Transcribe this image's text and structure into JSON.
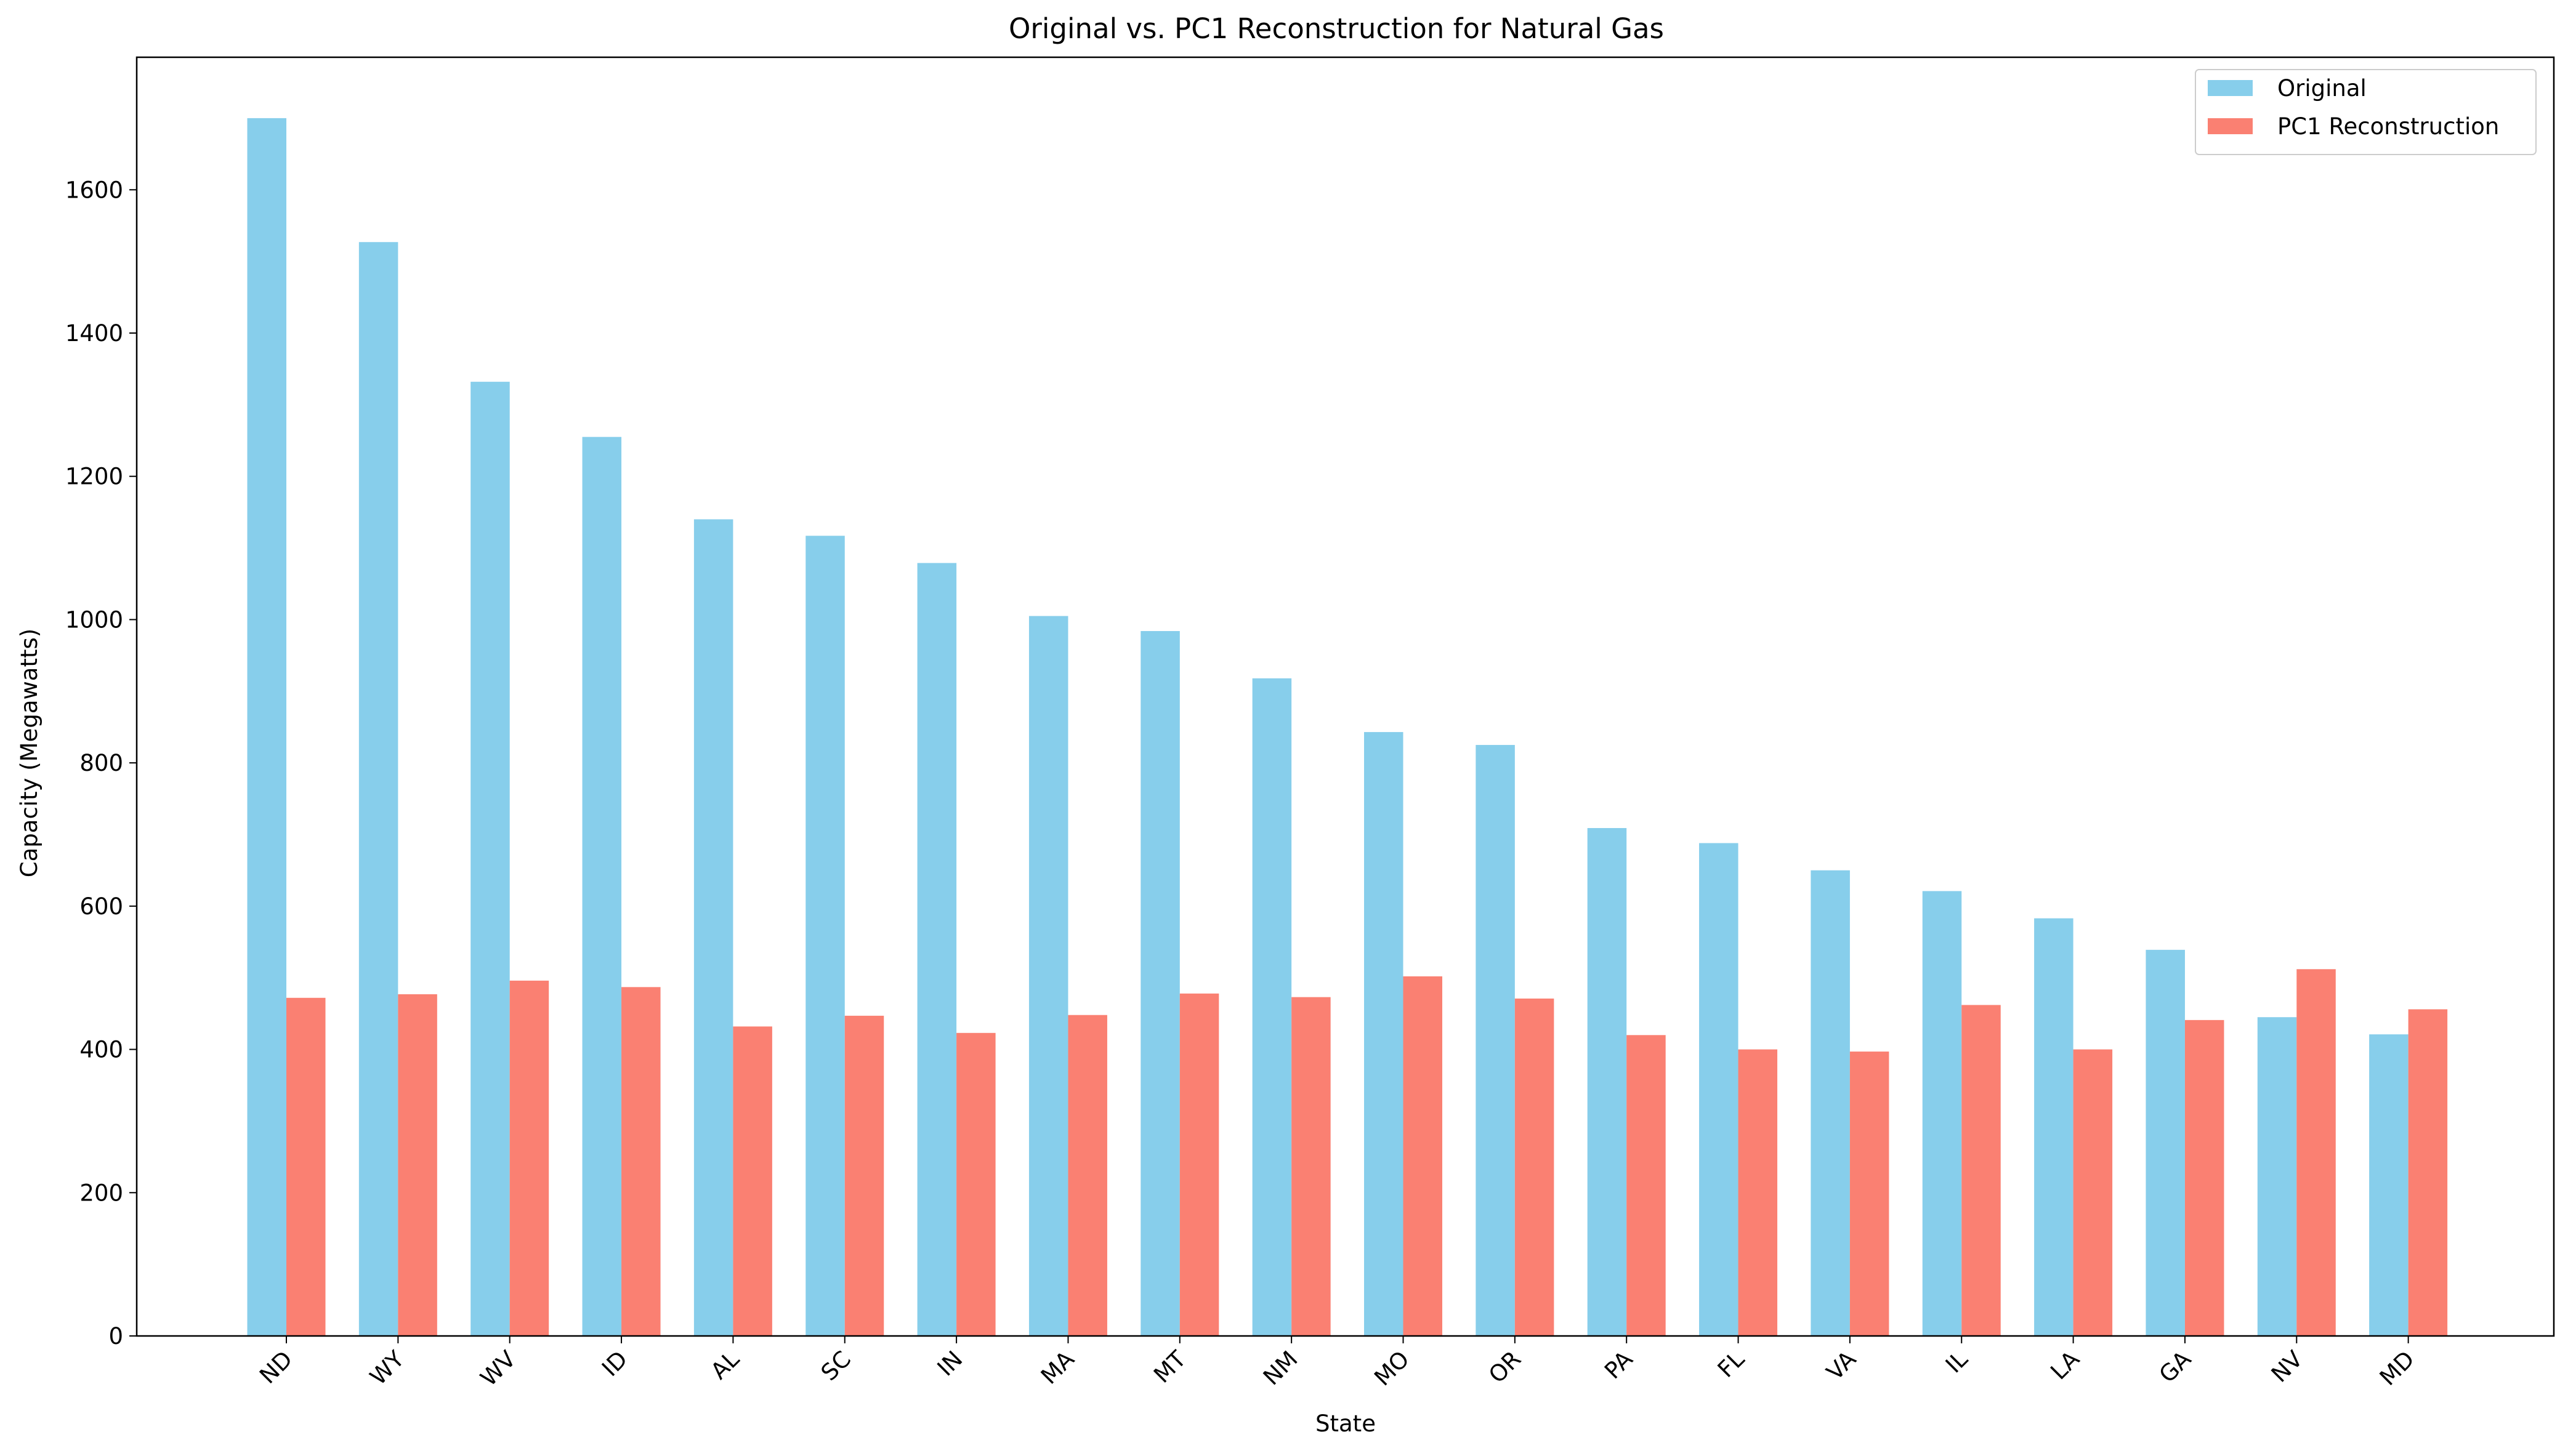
{
  "chart_data": {
    "type": "bar",
    "title": "Original vs. PC1 Reconstruction for Natural Gas",
    "xlabel": "State",
    "ylabel": "Capacity (Megawatts)",
    "categories": [
      "ND",
      "WY",
      "WV",
      "ID",
      "AL",
      "SC",
      "IN",
      "MA",
      "MT",
      "NM",
      "MO",
      "OR",
      "PA",
      "FL",
      "VA",
      "IL",
      "LA",
      "GA",
      "NV",
      "MD"
    ],
    "series": [
      {
        "name": "Original",
        "color": "#87CEEB",
        "values": [
          1700,
          1527,
          1332,
          1255,
          1140,
          1117,
          1079,
          1005,
          984,
          918,
          843,
          825,
          709,
          688,
          650,
          621,
          583,
          539,
          445,
          421
        ]
      },
      {
        "name": "PC1 Reconstruction",
        "color": "#FA8072",
        "values": [
          472,
          477,
          496,
          487,
          432,
          447,
          423,
          448,
          478,
          473,
          502,
          471,
          420,
          400,
          397,
          462,
          400,
          441,
          512,
          456
        ]
      }
    ],
    "ylim": [
      0,
      1785
    ],
    "yticks": [
      0,
      200,
      400,
      600,
      800,
      1000,
      1200,
      1400,
      1600
    ],
    "grid": false,
    "legend_position": "top-right"
  }
}
